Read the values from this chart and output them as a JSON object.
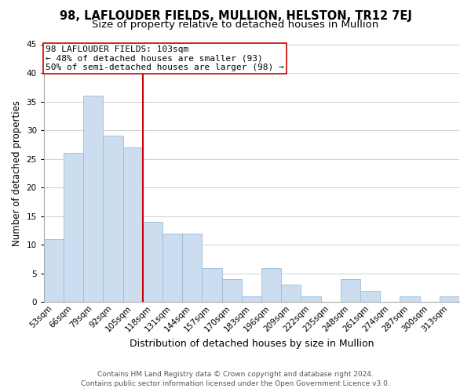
{
  "title": "98, LAFLOUDER FIELDS, MULLION, HELSTON, TR12 7EJ",
  "subtitle": "Size of property relative to detached houses in Mullion",
  "xlabel": "Distribution of detached houses by size in Mullion",
  "ylabel": "Number of detached properties",
  "categories": [
    "53sqm",
    "66sqm",
    "79sqm",
    "92sqm",
    "105sqm",
    "118sqm",
    "131sqm",
    "144sqm",
    "157sqm",
    "170sqm",
    "183sqm",
    "196sqm",
    "209sqm",
    "222sqm",
    "235sqm",
    "248sqm",
    "261sqm",
    "274sqm",
    "287sqm",
    "300sqm",
    "313sqm"
  ],
  "values": [
    11,
    26,
    36,
    29,
    27,
    14,
    12,
    12,
    6,
    4,
    1,
    6,
    3,
    1,
    0,
    4,
    2,
    0,
    1,
    0,
    1
  ],
  "bar_color": "#ccddf0",
  "bar_edge_color": "#9bbbd8",
  "reference_line_index": 4,
  "reference_line_color": "#cc0000",
  "ylim": [
    0,
    45
  ],
  "yticks": [
    0,
    5,
    10,
    15,
    20,
    25,
    30,
    35,
    40,
    45
  ],
  "annotation_title": "98 LAFLOUDER FIELDS: 103sqm",
  "annotation_line1": "← 48% of detached houses are smaller (93)",
  "annotation_line2": "50% of semi-detached houses are larger (98) →",
  "annotation_box_color": "#ffffff",
  "annotation_box_edge": "#cc0000",
  "footer_line1": "Contains HM Land Registry data © Crown copyright and database right 2024.",
  "footer_line2": "Contains public sector information licensed under the Open Government Licence v3.0.",
  "bg_color": "#ffffff",
  "grid_color": "#d0d0d0",
  "title_fontsize": 10.5,
  "subtitle_fontsize": 9.5,
  "xlabel_fontsize": 9,
  "ylabel_fontsize": 8.5,
  "tick_fontsize": 7.5,
  "annotation_fontsize": 8,
  "footer_fontsize": 6.5
}
